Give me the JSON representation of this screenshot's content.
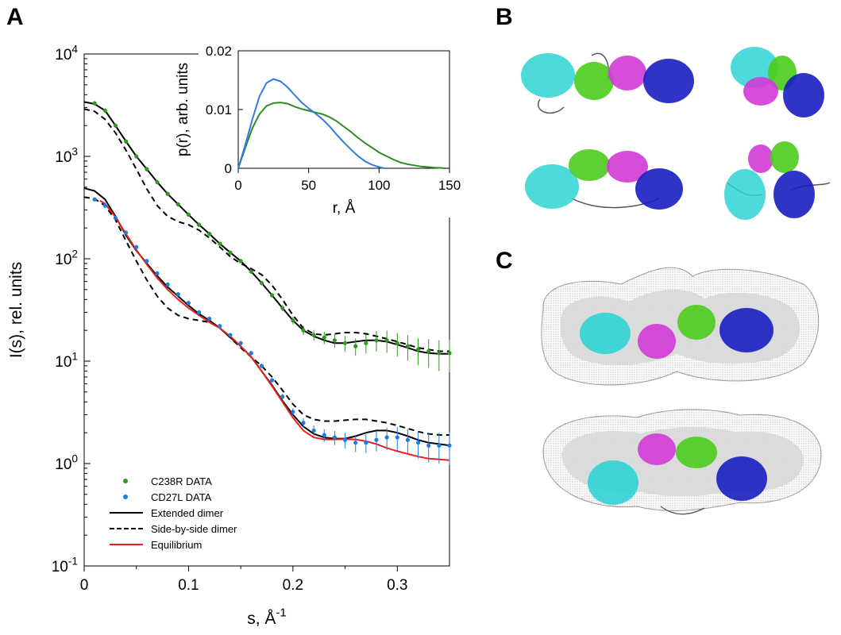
{
  "panels": {
    "a": "A",
    "b": "B",
    "c": "C"
  },
  "chart_data": [
    {
      "type": "scatter",
      "title": "",
      "ylabel": "I(s), rel. units",
      "xlabel": "s, Å",
      "xlabel_exp": "-1",
      "yscale": "log",
      "xlim": [
        0,
        0.35
      ],
      "ylim": [
        0.1,
        10000
      ],
      "xticks": [
        0,
        0.1,
        0.2,
        0.3
      ],
      "xtick_labels": [
        "0",
        "0.1",
        "0.2",
        "0.3"
      ],
      "ytick_labels": [
        {
          "base": "10",
          "exp": "-1",
          "value": 0.1
        },
        {
          "base": "10",
          "exp": "0",
          "value": 1
        },
        {
          "base": "10",
          "exp": "1",
          "value": 10
        },
        {
          "base": "10",
          "exp": "2",
          "value": 100
        },
        {
          "base": "10",
          "exp": "3",
          "value": 1000
        },
        {
          "base": "10",
          "exp": "4",
          "value": 10000
        }
      ],
      "legend_position": "bottom-left",
      "series": [
        {
          "name": "C238R DATA",
          "kind": "points",
          "color": "#2e9a1e",
          "x": [
            0.01,
            0.02,
            0.03,
            0.04,
            0.05,
            0.06,
            0.07,
            0.08,
            0.09,
            0.1,
            0.11,
            0.12,
            0.13,
            0.14,
            0.15,
            0.16,
            0.17,
            0.18,
            0.19,
            0.2,
            0.21,
            0.22,
            0.23,
            0.24,
            0.25,
            0.26,
            0.27,
            0.28,
            0.29,
            0.3,
            0.31,
            0.32,
            0.33,
            0.34,
            0.35
          ],
          "y": [
            3300,
            2800,
            2000,
            1400,
            1000,
            750,
            560,
            430,
            340,
            270,
            215,
            175,
            140,
            115,
            95,
            75,
            58,
            44,
            33,
            25,
            20,
            18,
            17,
            16,
            15,
            14,
            15,
            16,
            16,
            15,
            14,
            13,
            12.5,
            12,
            12
          ]
        },
        {
          "name": "CD27L DATA",
          "kind": "points",
          "color": "#1e7de0",
          "x": [
            0.01,
            0.02,
            0.03,
            0.04,
            0.05,
            0.06,
            0.07,
            0.08,
            0.09,
            0.1,
            0.11,
            0.12,
            0.13,
            0.14,
            0.15,
            0.16,
            0.17,
            0.18,
            0.19,
            0.2,
            0.21,
            0.22,
            0.23,
            0.24,
            0.25,
            0.26,
            0.27,
            0.28,
            0.29,
            0.3,
            0.31,
            0.32,
            0.33,
            0.34,
            0.35
          ],
          "y": [
            380,
            330,
            250,
            180,
            130,
            95,
            72,
            56,
            45,
            37,
            30,
            26,
            22,
            18,
            15,
            12,
            9,
            6.5,
            4.5,
            3.2,
            2.5,
            2.1,
            1.9,
            1.8,
            1.7,
            1.6,
            1.6,
            1.7,
            1.8,
            1.8,
            1.7,
            1.6,
            1.5,
            1.5,
            1.5
          ]
        },
        {
          "name": "Extended dimer",
          "kind": "line",
          "color": "#000000",
          "dash": "",
          "curves": [
            {
              "x": [
                0.0,
                0.01,
                0.02,
                0.03,
                0.04,
                0.05,
                0.06,
                0.07,
                0.08,
                0.09,
                0.1,
                0.11,
                0.12,
                0.13,
                0.14,
                0.15,
                0.16,
                0.17,
                0.18,
                0.19,
                0.2,
                0.21,
                0.22,
                0.23,
                0.24,
                0.25,
                0.26,
                0.27,
                0.28,
                0.29,
                0.3,
                0.31,
                0.32,
                0.33,
                0.34,
                0.35
              ],
              "y": [
                3400,
                3250,
                2800,
                2000,
                1400,
                1000,
                750,
                560,
                430,
                340,
                270,
                215,
                175,
                140,
                115,
                95,
                75,
                58,
                44,
                33,
                25,
                20,
                17.5,
                16,
                15,
                15,
                15.5,
                16,
                16,
                15.5,
                14.5,
                13.5,
                12.5,
                12,
                11.8,
                11.8
              ]
            },
            {
              "x": [
                0.0,
                0.01,
                0.02,
                0.03,
                0.04,
                0.05,
                0.06,
                0.07,
                0.08,
                0.09,
                0.1,
                0.11,
                0.12,
                0.13,
                0.14,
                0.15,
                0.16,
                0.17,
                0.18,
                0.19,
                0.2,
                0.21,
                0.22,
                0.23,
                0.24,
                0.25,
                0.26,
                0.27,
                0.28,
                0.29,
                0.3,
                0.31,
                0.32,
                0.33,
                0.34,
                0.35
              ],
              "y": [
                490,
                460,
                380,
                260,
                170,
                120,
                90,
                68,
                53,
                43,
                35,
                29,
                25,
                21,
                17,
                14,
                11,
                8,
                5.8,
                4.1,
                3,
                2.3,
                1.95,
                1.8,
                1.75,
                1.75,
                1.85,
                2.0,
                2.1,
                2.1,
                2.0,
                1.85,
                1.7,
                1.6,
                1.55,
                1.5
              ]
            }
          ]
        },
        {
          "name": "Side-by-side dimer",
          "kind": "line",
          "color": "#000000",
          "dash": "7,5",
          "curves": [
            {
              "x": [
                0.0,
                0.01,
                0.02,
                0.03,
                0.04,
                0.05,
                0.06,
                0.07,
                0.08,
                0.09,
                0.1,
                0.11,
                0.12,
                0.13,
                0.14,
                0.15,
                0.16,
                0.17,
                0.18,
                0.19,
                0.2,
                0.21,
                0.22,
                0.23,
                0.24,
                0.25,
                0.26,
                0.27,
                0.28,
                0.29,
                0.3,
                0.31,
                0.32,
                0.33,
                0.34,
                0.35
              ],
              "y": [
                2900,
                2750,
                2300,
                1700,
                1150,
                750,
                480,
                330,
                260,
                230,
                215,
                190,
                160,
                130,
                105,
                90,
                80,
                70,
                55,
                40,
                28,
                21,
                18.5,
                18,
                18.5,
                19,
                19,
                18.5,
                17.5,
                16.5,
                15.5,
                14.5,
                13.5,
                13,
                12.5,
                12.5
              ]
            },
            {
              "x": [
                0.0,
                0.01,
                0.02,
                0.03,
                0.04,
                0.05,
                0.06,
                0.07,
                0.08,
                0.09,
                0.1,
                0.11,
                0.12,
                0.13,
                0.14,
                0.15,
                0.16,
                0.17,
                0.18,
                0.19,
                0.2,
                0.21,
                0.22,
                0.23,
                0.24,
                0.25,
                0.26,
                0.27,
                0.28,
                0.29,
                0.3,
                0.31,
                0.32,
                0.33,
                0.34,
                0.35
              ],
              "y": [
                400,
                385,
                330,
                240,
                150,
                95,
                62,
                43,
                33,
                28,
                26,
                25,
                24,
                21,
                17,
                13.5,
                11,
                9,
                7,
                5.2,
                3.8,
                3.0,
                2.7,
                2.6,
                2.6,
                2.65,
                2.7,
                2.7,
                2.6,
                2.5,
                2.35,
                2.2,
                2.05,
                1.95,
                1.9,
                1.9
              ]
            }
          ]
        },
        {
          "name": "Equilibrium",
          "kind": "line",
          "color": "#e8201e",
          "dash": "",
          "curves": [
            {
              "x": [
                0.015,
                0.02,
                0.03,
                0.04,
                0.05,
                0.06,
                0.07,
                0.08,
                0.09,
                0.1,
                0.11,
                0.12,
                0.13,
                0.14,
                0.15,
                0.16,
                0.17,
                0.18,
                0.19,
                0.2,
                0.21,
                0.22,
                0.23,
                0.24,
                0.25,
                0.26,
                0.27,
                0.28,
                0.29,
                0.3,
                0.31,
                0.32,
                0.33,
                0.34,
                0.35
              ],
              "y": [
                370,
                345,
                255,
                175,
                122,
                88,
                65,
                50,
                40,
                33,
                28,
                24,
                21,
                17.5,
                14,
                11,
                8,
                5.7,
                4.0,
                2.8,
                2.1,
                1.8,
                1.72,
                1.72,
                1.73,
                1.72,
                1.65,
                1.55,
                1.42,
                1.32,
                1.24,
                1.17,
                1.12,
                1.1,
                1.08
              ]
            }
          ]
        }
      ]
    },
    {
      "type": "line",
      "title": "",
      "xlabel": "r, Å",
      "ylabel": "p(r), arb. units",
      "xlim": [
        0,
        150
      ],
      "ylim": [
        0,
        0.02
      ],
      "xticks": [
        0,
        50,
        100,
        150
      ],
      "xtick_labels": [
        "0",
        "50",
        "100",
        "150"
      ],
      "yticks": [
        0,
        0.01,
        0.02
      ],
      "ytick_labels": [
        "0",
        "0.01",
        "0.02"
      ],
      "series": [
        {
          "kind": "line",
          "color": "#2e8a22",
          "x": [
            0,
            5,
            10,
            15,
            20,
            25,
            30,
            35,
            40,
            45,
            50,
            55,
            60,
            65,
            70,
            75,
            80,
            85,
            90,
            95,
            100,
            105,
            110,
            115,
            120,
            125,
            130,
            135,
            140,
            145,
            147
          ],
          "y": [
            0,
            0.0035,
            0.0068,
            0.0092,
            0.0106,
            0.0111,
            0.0112,
            0.011,
            0.0105,
            0.0101,
            0.0098,
            0.0095,
            0.0092,
            0.0087,
            0.008,
            0.0071,
            0.0062,
            0.0052,
            0.0043,
            0.0035,
            0.0027,
            0.0021,
            0.0015,
            0.001,
            0.0007,
            0.0005,
            0.0003,
            0.0002,
            0.0001,
            5e-05,
            0
          ]
        },
        {
          "kind": "line",
          "color": "#2f7be0",
          "x": [
            0,
            5,
            10,
            15,
            20,
            25,
            30,
            35,
            40,
            45,
            50,
            55,
            60,
            65,
            70,
            75,
            80,
            85,
            90,
            95,
            100,
            104
          ],
          "y": [
            0,
            0.004,
            0.0083,
            0.0122,
            0.0145,
            0.0152,
            0.0148,
            0.0138,
            0.0125,
            0.0112,
            0.0102,
            0.0093,
            0.0083,
            0.0071,
            0.0057,
            0.0044,
            0.0032,
            0.0021,
            0.0012,
            0.0006,
            0.0002,
            0
          ]
        }
      ]
    }
  ],
  "structures": {
    "colors": {
      "chain1": "#2fd3d3",
      "chain2": "#4ccc1c",
      "chain3": "#d23ad6",
      "chain4": "#1a1ec0",
      "linker": "#555555",
      "envelope": "#cccccc"
    }
  }
}
